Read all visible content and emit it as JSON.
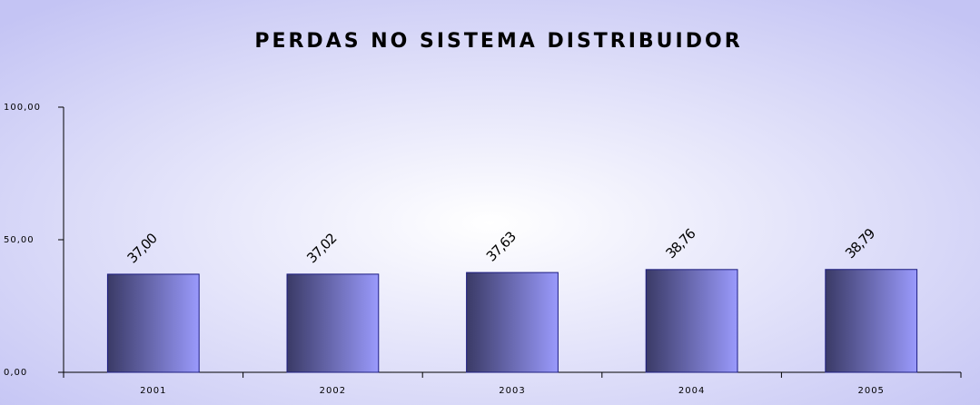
{
  "chart_data": {
    "type": "bar",
    "title": "PERDAS NO SISTEMA DISTRIBUIDOR",
    "categories": [
      "2001",
      "2002",
      "2003",
      "2004",
      "2005"
    ],
    "values": [
      37.0,
      37.02,
      37.63,
      38.76,
      38.79
    ],
    "value_labels": [
      "37,00",
      "37,02",
      "37,63",
      "38,76",
      "38,79"
    ],
    "ylim": [
      0,
      100
    ],
    "yticks": [
      {
        "value": 0,
        "label": "0,00"
      },
      {
        "value": 50,
        "label": "50,00"
      },
      {
        "value": 100,
        "label": "100,00"
      }
    ]
  }
}
